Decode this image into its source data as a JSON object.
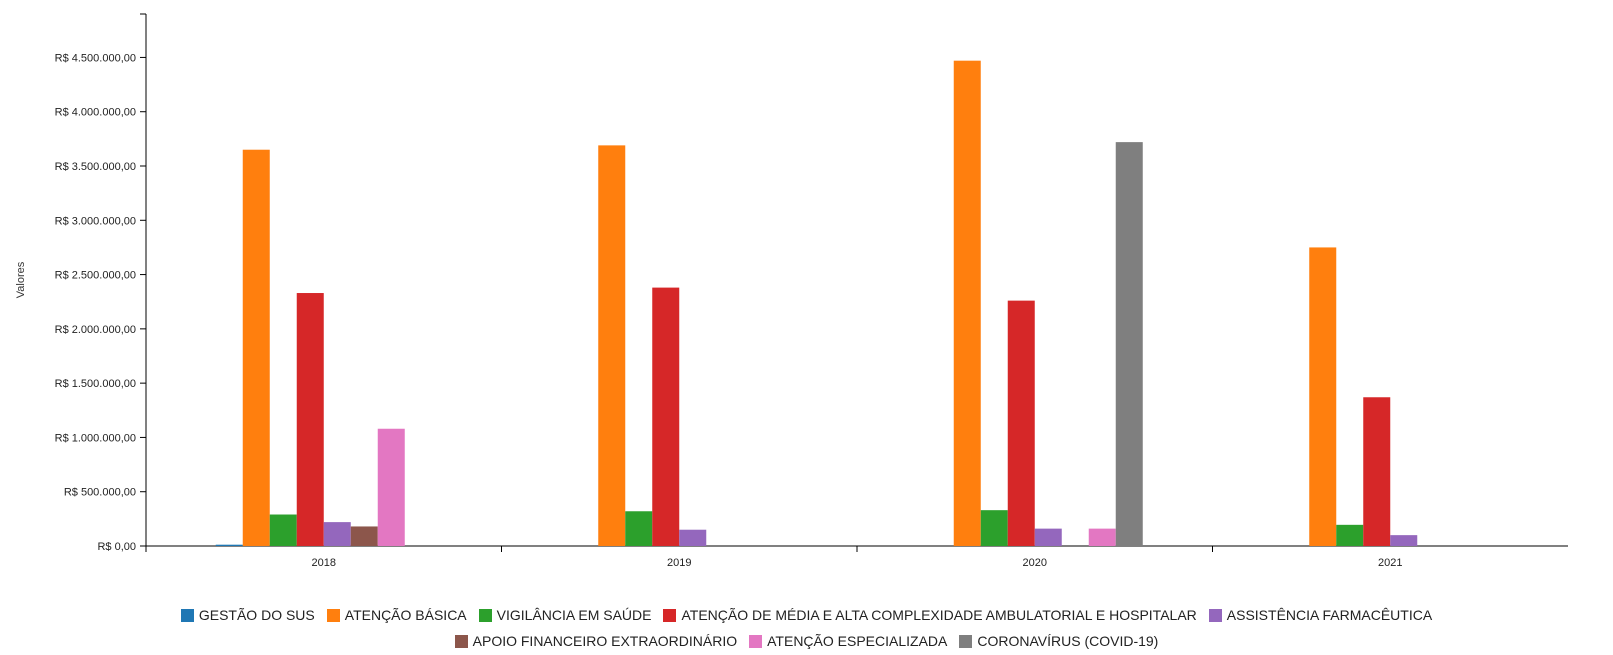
{
  "chart_data": {
    "type": "bar",
    "ylabel": "Valores",
    "xlabel": "",
    "categories": [
      "2018",
      "2019",
      "2020",
      "2021"
    ],
    "ylim": [
      0,
      4900000
    ],
    "yticks": [
      0,
      500000,
      1000000,
      1500000,
      2000000,
      2500000,
      3000000,
      3500000,
      4000000,
      4500000
    ],
    "ytick_labels": [
      "R$ 0,00",
      "R$ 500.000,00",
      "R$ 1.000.000,00",
      "R$ 1.500.000,00",
      "R$ 2.000.000,00",
      "R$ 2.500.000,00",
      "R$ 3.000.000,00",
      "R$ 3.500.000,00",
      "R$ 4.000.000,00",
      "R$ 4.500.000,00"
    ],
    "legend_position": "bottom",
    "series": [
      {
        "name": "GESTÃO DO SUS",
        "color": "#1f77b4",
        "values": [
          12000,
          0,
          0,
          0
        ]
      },
      {
        "name": "ATENÇÃO BÁSICA",
        "color": "#ff7f0e",
        "values": [
          3650000,
          3690000,
          4470000,
          2750000
        ]
      },
      {
        "name": "VIGILÂNCIA EM SAÚDE",
        "color": "#2ca02c",
        "values": [
          290000,
          320000,
          330000,
          195000
        ]
      },
      {
        "name": "ATENÇÃO DE MÉDIA E ALTA COMPLEXIDADE AMBULATORIAL E HOSPITALAR",
        "color": "#d62728",
        "values": [
          2330000,
          2380000,
          2260000,
          1370000
        ]
      },
      {
        "name": "ASSISTÊNCIA FARMACÊUTICA",
        "color": "#9467bd",
        "values": [
          220000,
          150000,
          160000,
          100000
        ]
      },
      {
        "name": "APOIO FINANCEIRO EXTRAORDINÁRIO",
        "color": "#8c564b",
        "values": [
          180000,
          0,
          0,
          0
        ]
      },
      {
        "name": "ATENÇÃO ESPECIALIZADA",
        "color": "#e377c2",
        "values": [
          1080000,
          0,
          160000,
          0
        ]
      },
      {
        "name": "CORONAVÍRUS (COVID-19)",
        "color": "#7f7f7f",
        "values": [
          0,
          0,
          3720000,
          0
        ]
      }
    ]
  }
}
